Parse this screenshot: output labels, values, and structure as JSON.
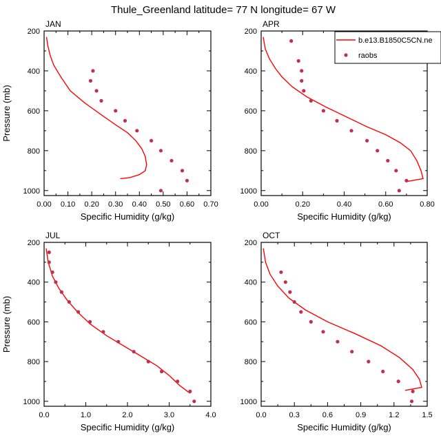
{
  "title": "Thule_Greenland  latitude= 77 N longitude= 67 W",
  "colors": {
    "model_line": "#ff0000",
    "raobs_marker": "#c0304d",
    "axis": "#000000"
  },
  "chart_data": [
    {
      "type": "line",
      "panel": "JAN",
      "xlabel": "Specific Humidity (g/kg)",
      "ylabel": "Pressure (mb)",
      "xlim": [
        0,
        0.7
      ],
      "ylim": [
        1025,
        200
      ],
      "xticks": [
        "0.00",
        "0.10",
        "0.20",
        "0.30",
        "0.40",
        "0.50",
        "0.60",
        "0.70"
      ],
      "yticks": [
        "200",
        "400",
        "600",
        "800",
        "1000"
      ],
      "series": [
        {
          "name": "b.e13.B1850C5CN.ne",
          "style": "line",
          "x": [
            0.01,
            0.015,
            0.025,
            0.04,
            0.07,
            0.11,
            0.17,
            0.24,
            0.3,
            0.35,
            0.385,
            0.41,
            0.425,
            0.43,
            0.425,
            0.4,
            0.36,
            0.32
          ],
          "y": [
            230,
            270,
            320,
            370,
            430,
            500,
            560,
            620,
            670,
            710,
            750,
            790,
            830,
            870,
            900,
            920,
            935,
            940
          ]
        },
        {
          "name": "raobs",
          "style": "markers",
          "x": [
            0.205,
            0.195,
            0.22,
            0.24,
            0.3,
            0.34,
            0.39,
            0.45,
            0.49,
            0.535,
            0.58,
            0.6,
            0.49
          ],
          "y": [
            400,
            450,
            500,
            550,
            600,
            650,
            700,
            750,
            800,
            850,
            900,
            950,
            1000
          ]
        }
      ]
    },
    {
      "type": "line",
      "panel": "APR",
      "xlabel": "Specific Humidity (g/kg)",
      "ylabel": "",
      "xlim": [
        0,
        0.8
      ],
      "ylim": [
        1025,
        200
      ],
      "xticks": [
        "0.00",
        "0.20",
        "0.40",
        "0.60",
        "0.80"
      ],
      "yticks": [
        "200",
        "400",
        "600",
        "800",
        "1000"
      ],
      "legend": {
        "position": "top-right",
        "entries": [
          "b.e13.B1850C5CN.ne",
          "raobs"
        ]
      },
      "series": [
        {
          "name": "b.e13.B1850C5CN.ne",
          "style": "line",
          "x": [
            0.01,
            0.02,
            0.04,
            0.07,
            0.1,
            0.15,
            0.22,
            0.31,
            0.41,
            0.51,
            0.6,
            0.67,
            0.72,
            0.75,
            0.77,
            0.78,
            0.7
          ],
          "y": [
            230,
            290,
            340,
            390,
            430,
            480,
            530,
            580,
            630,
            680,
            720,
            760,
            800,
            850,
            900,
            940,
            955
          ]
        },
        {
          "name": "raobs",
          "style": "markers",
          "x": [
            0.145,
            0.18,
            0.195,
            0.195,
            0.205,
            0.24,
            0.3,
            0.365,
            0.435,
            0.51,
            0.56,
            0.61,
            0.65,
            0.7,
            0.665
          ],
          "y": [
            250,
            350,
            400,
            450,
            500,
            550,
            600,
            650,
            700,
            750,
            800,
            850,
            900,
            950,
            1000
          ]
        }
      ]
    },
    {
      "type": "line",
      "panel": "JUL",
      "xlabel": "Specific Humidity (g/kg)",
      "ylabel": "Pressure (mb)",
      "xlim": [
        0,
        4.0
      ],
      "ylim": [
        1025,
        200
      ],
      "xticks": [
        "0.0",
        "1.0",
        "2.0",
        "3.0",
        "4.0"
      ],
      "yticks": [
        "200",
        "400",
        "600",
        "800",
        "1000"
      ],
      "series": [
        {
          "name": "b.e13.B1850C5CN.ne",
          "style": "line",
          "x": [
            0.05,
            0.1,
            0.2,
            0.35,
            0.55,
            0.8,
            1.1,
            1.5,
            1.9,
            2.3,
            2.7,
            3.0,
            3.25,
            3.5
          ],
          "y": [
            230,
            300,
            370,
            430,
            490,
            550,
            610,
            670,
            720,
            770,
            820,
            870,
            920,
            960
          ]
        },
        {
          "name": "raobs",
          "style": "markers",
          "x": [
            0.12,
            0.12,
            0.2,
            0.28,
            0.42,
            0.6,
            0.82,
            1.1,
            1.42,
            1.78,
            2.15,
            2.5,
            2.82,
            3.2,
            3.5,
            3.6
          ],
          "y": [
            250,
            300,
            350,
            400,
            450,
            500,
            550,
            600,
            650,
            700,
            750,
            800,
            850,
            900,
            950,
            1000
          ]
        }
      ]
    },
    {
      "type": "line",
      "panel": "OCT",
      "xlabel": "Specific Humidity (g/kg)",
      "ylabel": "",
      "xlim": [
        0,
        1.5
      ],
      "ylim": [
        1025,
        200
      ],
      "xticks": [
        "0.0",
        "0.3",
        "0.6",
        "0.9",
        "1.2",
        "1.5"
      ],
      "yticks": [
        "200",
        "400",
        "600",
        "800",
        "1000"
      ],
      "series": [
        {
          "name": "b.e13.B1850C5CN.ne",
          "style": "line",
          "x": [
            0.02,
            0.04,
            0.08,
            0.15,
            0.25,
            0.4,
            0.6,
            0.85,
            1.08,
            1.25,
            1.37,
            1.43,
            1.45,
            1.3
          ],
          "y": [
            230,
            300,
            360,
            420,
            480,
            540,
            600,
            660,
            720,
            780,
            840,
            890,
            930,
            945
          ]
        },
        {
          "name": "raobs",
          "style": "markers",
          "x": [
            0.18,
            0.22,
            0.26,
            0.3,
            0.36,
            0.45,
            0.56,
            0.69,
            0.82,
            0.97,
            1.1,
            1.24,
            1.37,
            1.36
          ],
          "y": [
            350,
            400,
            450,
            500,
            550,
            600,
            650,
            700,
            750,
            800,
            850,
            900,
            950,
            1000
          ]
        }
      ]
    }
  ]
}
